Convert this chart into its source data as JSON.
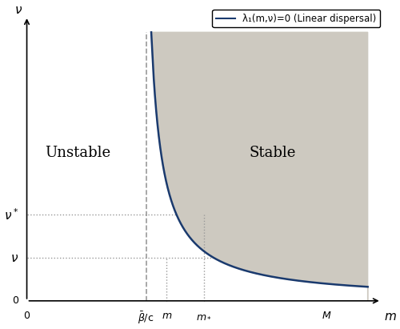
{
  "xlim": [
    0,
    10
  ],
  "ylim": [
    0,
    10
  ],
  "xlabel": "m",
  "ylabel": "ν",
  "stable_label": "Stable",
  "unstable_label": "Unstable",
  "legend_label": "λ₁(m,ν)=0 (Linear dispersal)",
  "curve_color": "#1a3a6e",
  "fill_color": "#cdc9c0",
  "fill_alpha": 1.0,
  "bar_beta_c_x": 3.5,
  "m_val_x": 4.1,
  "m_star_x": 5.2,
  "M_val_x": 8.8,
  "nu_val_y": 1.6,
  "nu_star_y": 3.2,
  "curve_x0": 3.3,
  "hyperbola_k": 3.5,
  "dashed_line_color": "#999999",
  "dotted_line_color": "#999999"
}
